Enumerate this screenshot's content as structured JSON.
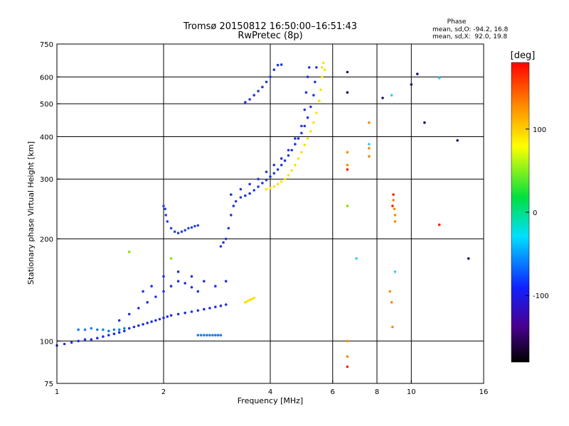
{
  "chart_data": {
    "type": "scatter",
    "title": "Tromsø 20150812 16:50:00–16:51:43",
    "subtitle": "RwPretec (8p)",
    "xlabel": "Frequency [MHz]",
    "ylabel": "Stationary phase Virtual Height [km]",
    "x_scale": "log",
    "y_scale": "log",
    "xlim": [
      1,
      16
    ],
    "ylim": [
      75,
      750
    ],
    "x_ticks": [
      1,
      2,
      4,
      6,
      8,
      10,
      16
    ],
    "y_ticks": [
      75,
      100,
      200,
      300,
      400,
      500,
      600,
      750
    ],
    "x_gridlines": [
      2,
      4,
      6,
      8,
      10
    ],
    "y_gridlines": [
      100,
      200,
      300,
      400,
      500,
      600
    ],
    "phase_info": {
      "heading": "Phase",
      "line_o": "mean, sd,O: -94.2, 16.8",
      "line_x": "mean, sd,X:  92.0, 19.8"
    },
    "colorbar": {
      "label": "[deg]",
      "range": [
        -180,
        180
      ],
      "ticks": [
        100,
        0,
        -100
      ],
      "tick_labels": [
        "100",
        "0",
        "-100"
      ]
    },
    "series": [
      {
        "phase": -110,
        "color": "#2030e0",
        "points": [
          [
            1.0,
            97
          ],
          [
            1.05,
            98
          ],
          [
            1.1,
            99
          ],
          [
            1.15,
            100
          ],
          [
            1.2,
            101
          ],
          [
            1.25,
            101
          ],
          [
            1.3,
            102
          ],
          [
            1.35,
            103
          ],
          [
            1.4,
            104
          ],
          [
            1.45,
            105
          ],
          [
            1.5,
            106
          ],
          [
            1.55,
            107
          ],
          [
            1.6,
            109
          ],
          [
            1.65,
            110
          ],
          [
            1.7,
            111
          ],
          [
            1.75,
            112
          ],
          [
            1.8,
            113
          ],
          [
            1.85,
            114
          ],
          [
            1.9,
            115
          ],
          [
            1.95,
            116
          ],
          [
            2.0,
            117
          ],
          [
            2.05,
            118
          ],
          [
            2.1,
            119
          ],
          [
            2.2,
            120
          ],
          [
            2.3,
            121
          ],
          [
            2.4,
            122
          ],
          [
            2.5,
            123
          ],
          [
            2.6,
            124
          ],
          [
            2.7,
            125
          ],
          [
            2.8,
            126
          ],
          [
            2.9,
            127
          ],
          [
            3.0,
            128
          ],
          [
            1.5,
            115
          ],
          [
            1.6,
            120
          ],
          [
            1.7,
            125
          ],
          [
            1.8,
            130
          ],
          [
            1.9,
            135
          ],
          [
            2.0,
            140
          ],
          [
            2.1,
            145
          ],
          [
            2.2,
            150
          ],
          [
            2.3,
            148
          ],
          [
            2.4,
            144
          ],
          [
            2.5,
            140
          ],
          [
            1.75,
            140
          ],
          [
            1.85,
            145
          ],
          [
            2.0,
            155
          ],
          [
            2.2,
            160
          ],
          [
            2.4,
            155
          ],
          [
            2.6,
            150
          ],
          [
            2.8,
            145
          ],
          [
            3.0,
            150
          ]
        ]
      },
      {
        "phase": -95,
        "color": "#1a7ee8",
        "points": [
          [
            1.15,
            108
          ],
          [
            1.2,
            108
          ],
          [
            1.25,
            109
          ],
          [
            1.3,
            108
          ],
          [
            1.35,
            108
          ],
          [
            1.4,
            107
          ],
          [
            1.45,
            108
          ],
          [
            1.5,
            108
          ],
          [
            1.55,
            109
          ],
          [
            2.5,
            104
          ],
          [
            2.55,
            104
          ],
          [
            2.6,
            104
          ],
          [
            2.65,
            104
          ],
          [
            2.7,
            104
          ],
          [
            2.75,
            104
          ],
          [
            2.8,
            104
          ],
          [
            2.85,
            104
          ],
          [
            2.9,
            104
          ]
        ]
      },
      {
        "phase": -105,
        "color": "#2a44d8",
        "points": [
          [
            2.0,
            250
          ],
          [
            2.02,
            245
          ],
          [
            2.03,
            235
          ],
          [
            2.05,
            225
          ],
          [
            2.1,
            215
          ],
          [
            2.15,
            210
          ],
          [
            2.2,
            208
          ],
          [
            2.25,
            210
          ],
          [
            2.3,
            212
          ],
          [
            2.35,
            215
          ],
          [
            2.4,
            216
          ],
          [
            2.45,
            218
          ],
          [
            2.5,
            219
          ]
        ]
      },
      {
        "phase": -108,
        "color": "#2438d8",
        "points": [
          [
            2.9,
            190
          ],
          [
            2.95,
            195
          ],
          [
            3.0,
            200
          ],
          [
            3.05,
            215
          ],
          [
            3.1,
            235
          ],
          [
            3.15,
            250
          ],
          [
            3.2,
            258
          ],
          [
            3.3,
            265
          ],
          [
            3.4,
            268
          ],
          [
            3.5,
            272
          ],
          [
            3.6,
            278
          ],
          [
            3.7,
            285
          ],
          [
            3.8,
            292
          ],
          [
            3.9,
            298
          ],
          [
            4.0,
            305
          ],
          [
            4.1,
            312
          ],
          [
            4.2,
            320
          ],
          [
            4.3,
            330
          ],
          [
            4.4,
            340
          ],
          [
            4.5,
            352
          ],
          [
            4.6,
            365
          ],
          [
            4.7,
            380
          ],
          [
            4.8,
            395
          ],
          [
            4.9,
            410
          ],
          [
            5.0,
            430
          ],
          [
            5.1,
            455
          ],
          [
            5.2,
            490
          ],
          [
            5.3,
            530
          ],
          [
            5.35,
            580
          ],
          [
            5.4,
            640
          ],
          [
            3.1,
            270
          ],
          [
            3.3,
            280
          ],
          [
            3.5,
            290
          ],
          [
            3.7,
            300
          ],
          [
            3.9,
            315
          ],
          [
            4.1,
            330
          ],
          [
            4.3,
            345
          ],
          [
            4.5,
            365
          ],
          [
            4.7,
            395
          ],
          [
            4.9,
            430
          ],
          [
            5.0,
            480
          ],
          [
            5.05,
            540
          ],
          [
            5.1,
            600
          ],
          [
            5.15,
            640
          ],
          [
            3.4,
            505
          ],
          [
            3.5,
            515
          ],
          [
            3.6,
            530
          ],
          [
            3.7,
            545
          ],
          [
            3.8,
            560
          ],
          [
            3.9,
            580
          ],
          [
            4.0,
            600
          ],
          [
            4.1,
            630
          ],
          [
            4.2,
            650
          ],
          [
            4.3,
            652
          ]
        ]
      },
      {
        "phase": 95,
        "color": "#ffe000",
        "points": [
          [
            3.9,
            280
          ],
          [
            4.0,
            282
          ],
          [
            4.1,
            285
          ],
          [
            4.2,
            290
          ],
          [
            4.3,
            295
          ],
          [
            4.4,
            300
          ],
          [
            4.5,
            308
          ],
          [
            4.6,
            318
          ],
          [
            4.7,
            330
          ],
          [
            4.8,
            345
          ],
          [
            4.9,
            360
          ],
          [
            5.0,
            378
          ],
          [
            5.1,
            395
          ],
          [
            5.2,
            415
          ],
          [
            5.3,
            440
          ],
          [
            5.4,
            470
          ],
          [
            5.5,
            510
          ],
          [
            5.55,
            550
          ],
          [
            5.6,
            600
          ],
          [
            5.6,
            640
          ],
          [
            5.65,
            660
          ],
          [
            5.7,
            630
          ],
          [
            3.4,
            130
          ],
          [
            3.45,
            131
          ],
          [
            3.5,
            132
          ],
          [
            3.55,
            133
          ],
          [
            3.6,
            134
          ]
        ]
      },
      {
        "phase": 120,
        "color": "#ff8800",
        "points": [
          [
            8.7,
            140
          ],
          [
            8.8,
            130
          ],
          [
            8.85,
            110
          ],
          [
            8.9,
            260
          ],
          [
            8.95,
            245
          ],
          [
            9.0,
            235
          ],
          [
            9.0,
            225
          ],
          [
            7.6,
            350
          ],
          [
            7.6,
            370
          ],
          [
            7.6,
            440
          ],
          [
            6.6,
            90
          ],
          [
            6.6,
            100
          ],
          [
            6.6,
            360
          ],
          [
            6.6,
            330
          ]
        ]
      },
      {
        "phase": 160,
        "color": "#ff2000",
        "points": [
          [
            6.6,
            84
          ],
          [
            6.6,
            320
          ],
          [
            8.85,
            250
          ],
          [
            8.9,
            270
          ],
          [
            12.0,
            220
          ]
        ]
      },
      {
        "phase": -150,
        "color": "#201070",
        "points": [
          [
            6.6,
            620
          ],
          [
            6.6,
            540
          ],
          [
            10.0,
            570
          ],
          [
            10.9,
            440
          ],
          [
            10.4,
            612
          ],
          [
            13.5,
            390
          ],
          [
            14.5,
            175
          ],
          [
            8.3,
            520
          ]
        ]
      },
      {
        "phase": -60,
        "color": "#30d0f0",
        "points": [
          [
            7.6,
            380
          ],
          [
            8.8,
            530
          ],
          [
            12.0,
            595
          ],
          [
            7.0,
            175
          ],
          [
            9.0,
            160
          ]
        ]
      },
      {
        "phase": 40,
        "color": "#90e000",
        "points": [
          [
            6.6,
            250
          ],
          [
            2.1,
            175
          ],
          [
            1.6,
            183
          ]
        ]
      }
    ]
  }
}
